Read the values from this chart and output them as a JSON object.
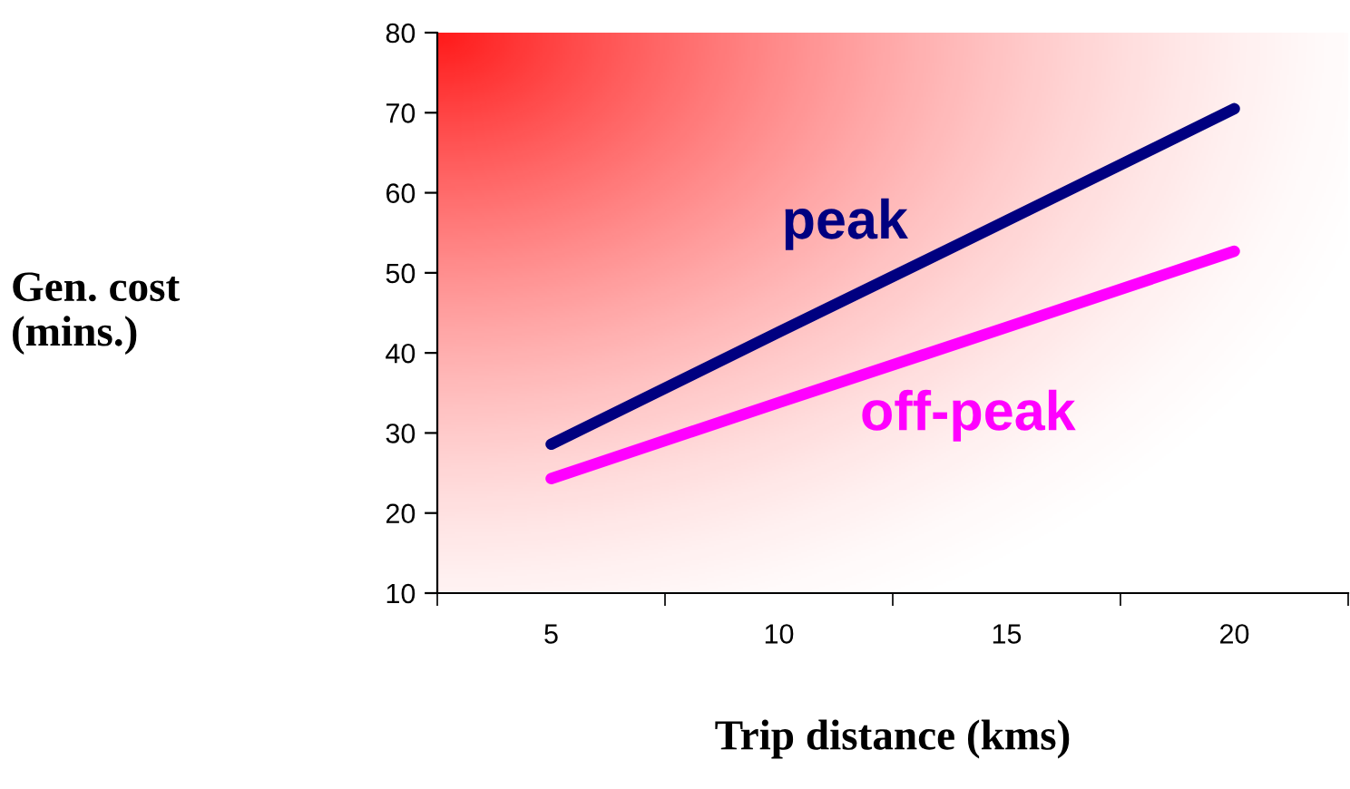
{
  "chart_data": {
    "type": "line",
    "xlabel": "Trip distance (kms)",
    "ylabel": "Gen. cost\n(mins.)",
    "x": [
      5,
      10,
      15,
      20
    ],
    "series": [
      {
        "name": "peak",
        "color": "#000080",
        "values": [
          28.6,
          42.6,
          56.5,
          70.5
        ]
      },
      {
        "name": "off-peak",
        "color": "#ff00ff",
        "values": [
          24.3,
          33.8,
          43.2,
          52.7
        ]
      }
    ],
    "xlim": [
      2.5,
      22.5
    ],
    "xticks": [
      {
        "value": 2.5,
        "label": null
      },
      5,
      {
        "value": 7.5,
        "label": null
      },
      10,
      {
        "value": 12.5,
        "label": null
      },
      15,
      {
        "value": 17.5,
        "label": null
      },
      20,
      {
        "value": 22.5,
        "label": null
      }
    ],
    "ylim": [
      10,
      80
    ],
    "yticks": [
      10,
      20,
      30,
      40,
      50,
      60,
      70,
      80
    ],
    "grid": false,
    "legend": false,
    "marker": "none",
    "line_style": "solid"
  }
}
